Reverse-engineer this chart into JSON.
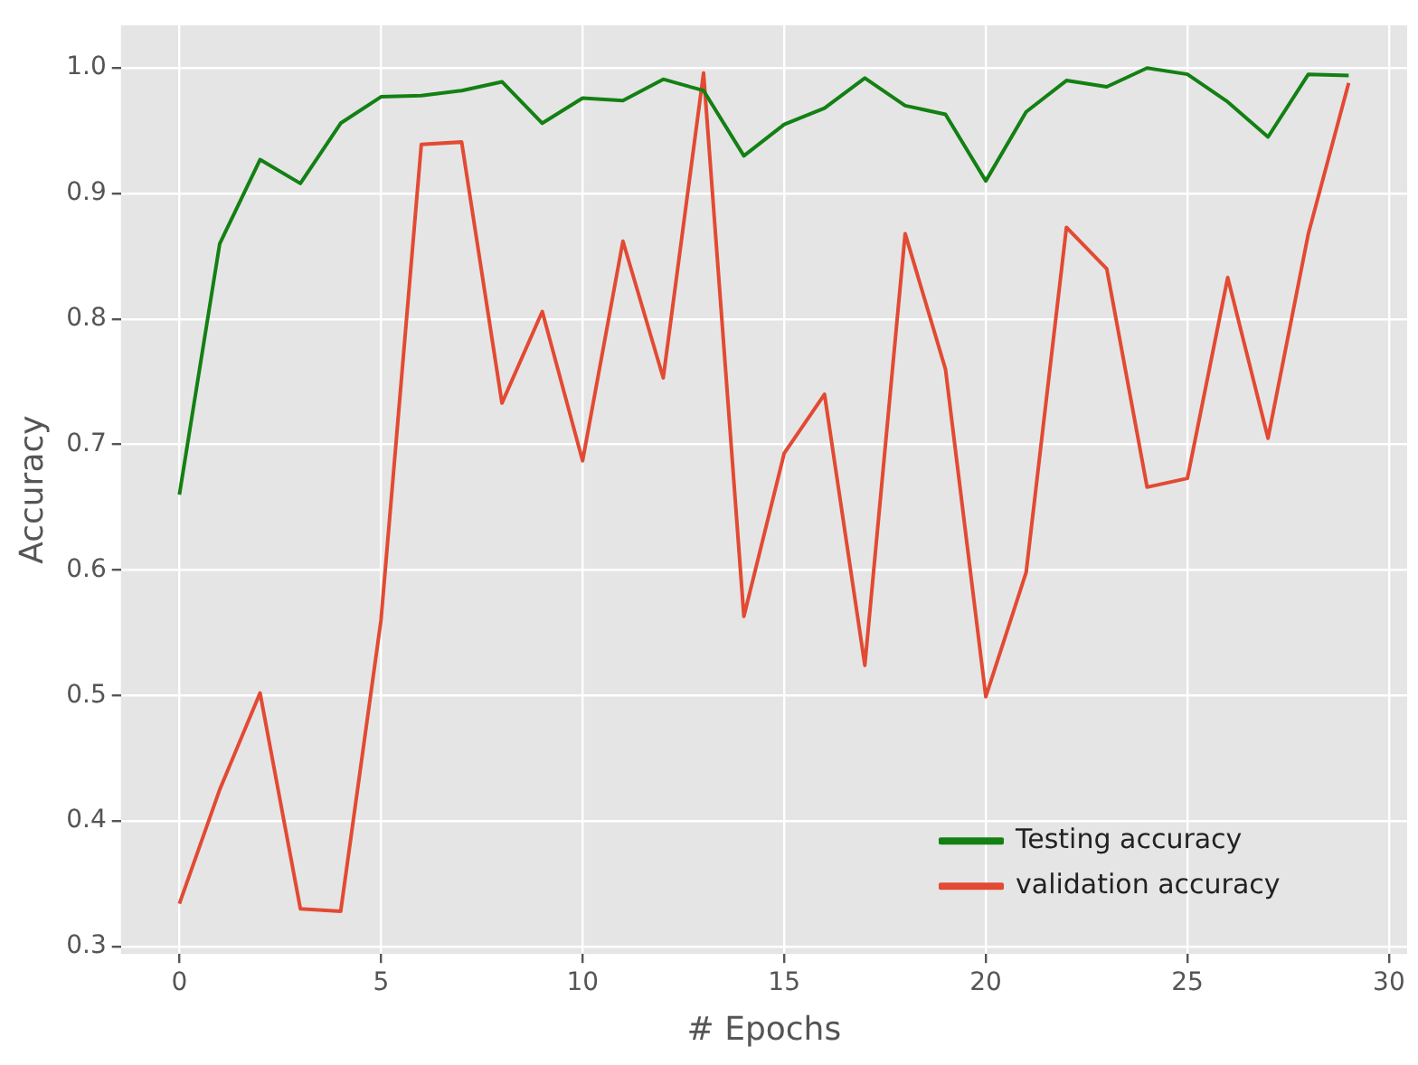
{
  "chart_data": {
    "type": "line",
    "xlabel": "# Epochs",
    "ylabel": "Accuracy",
    "x": [
      0,
      1,
      2,
      3,
      4,
      5,
      6,
      7,
      8,
      9,
      10,
      11,
      12,
      13,
      14,
      15,
      16,
      17,
      18,
      19,
      20,
      21,
      22,
      23,
      24,
      25,
      26,
      27,
      28,
      29
    ],
    "series": [
      {
        "name": "Testing accuracy",
        "color": "#138013",
        "values": [
          0.66,
          0.86,
          0.927,
          0.908,
          0.956,
          0.977,
          0.978,
          0.982,
          0.989,
          0.956,
          0.976,
          0.974,
          0.991,
          0.982,
          0.93,
          0.955,
          0.968,
          0.992,
          0.97,
          0.963,
          0.91,
          0.965,
          0.99,
          0.985,
          1.0,
          0.995,
          0.973,
          0.945,
          0.995,
          0.994
        ]
      },
      {
        "name": "validation accuracy",
        "color": "#e24a33",
        "values": [
          0.334,
          0.425,
          0.502,
          0.33,
          0.328,
          0.56,
          0.939,
          0.941,
          0.733,
          0.806,
          0.687,
          0.862,
          0.753,
          0.996,
          0.563,
          0.693,
          0.74,
          0.524,
          0.868,
          0.76,
          0.499,
          0.598,
          0.873,
          0.84,
          0.666,
          0.673,
          0.833,
          0.705,
          0.868,
          0.988
        ]
      }
    ],
    "xlim": [
      -1.45,
      30.45
    ],
    "xticks": [
      0,
      5,
      10,
      15,
      20,
      25,
      30
    ],
    "ylim": [
      0.294,
      1.034
    ],
    "yticks": [
      0.3,
      0.4,
      0.5,
      0.6,
      0.7,
      0.8,
      0.9,
      {
        "value": 1,
        "label": "1.0"
      }
    ],
    "grid": true,
    "legend": "bottom right",
    "marker": "none",
    "line_style": "solid"
  }
}
